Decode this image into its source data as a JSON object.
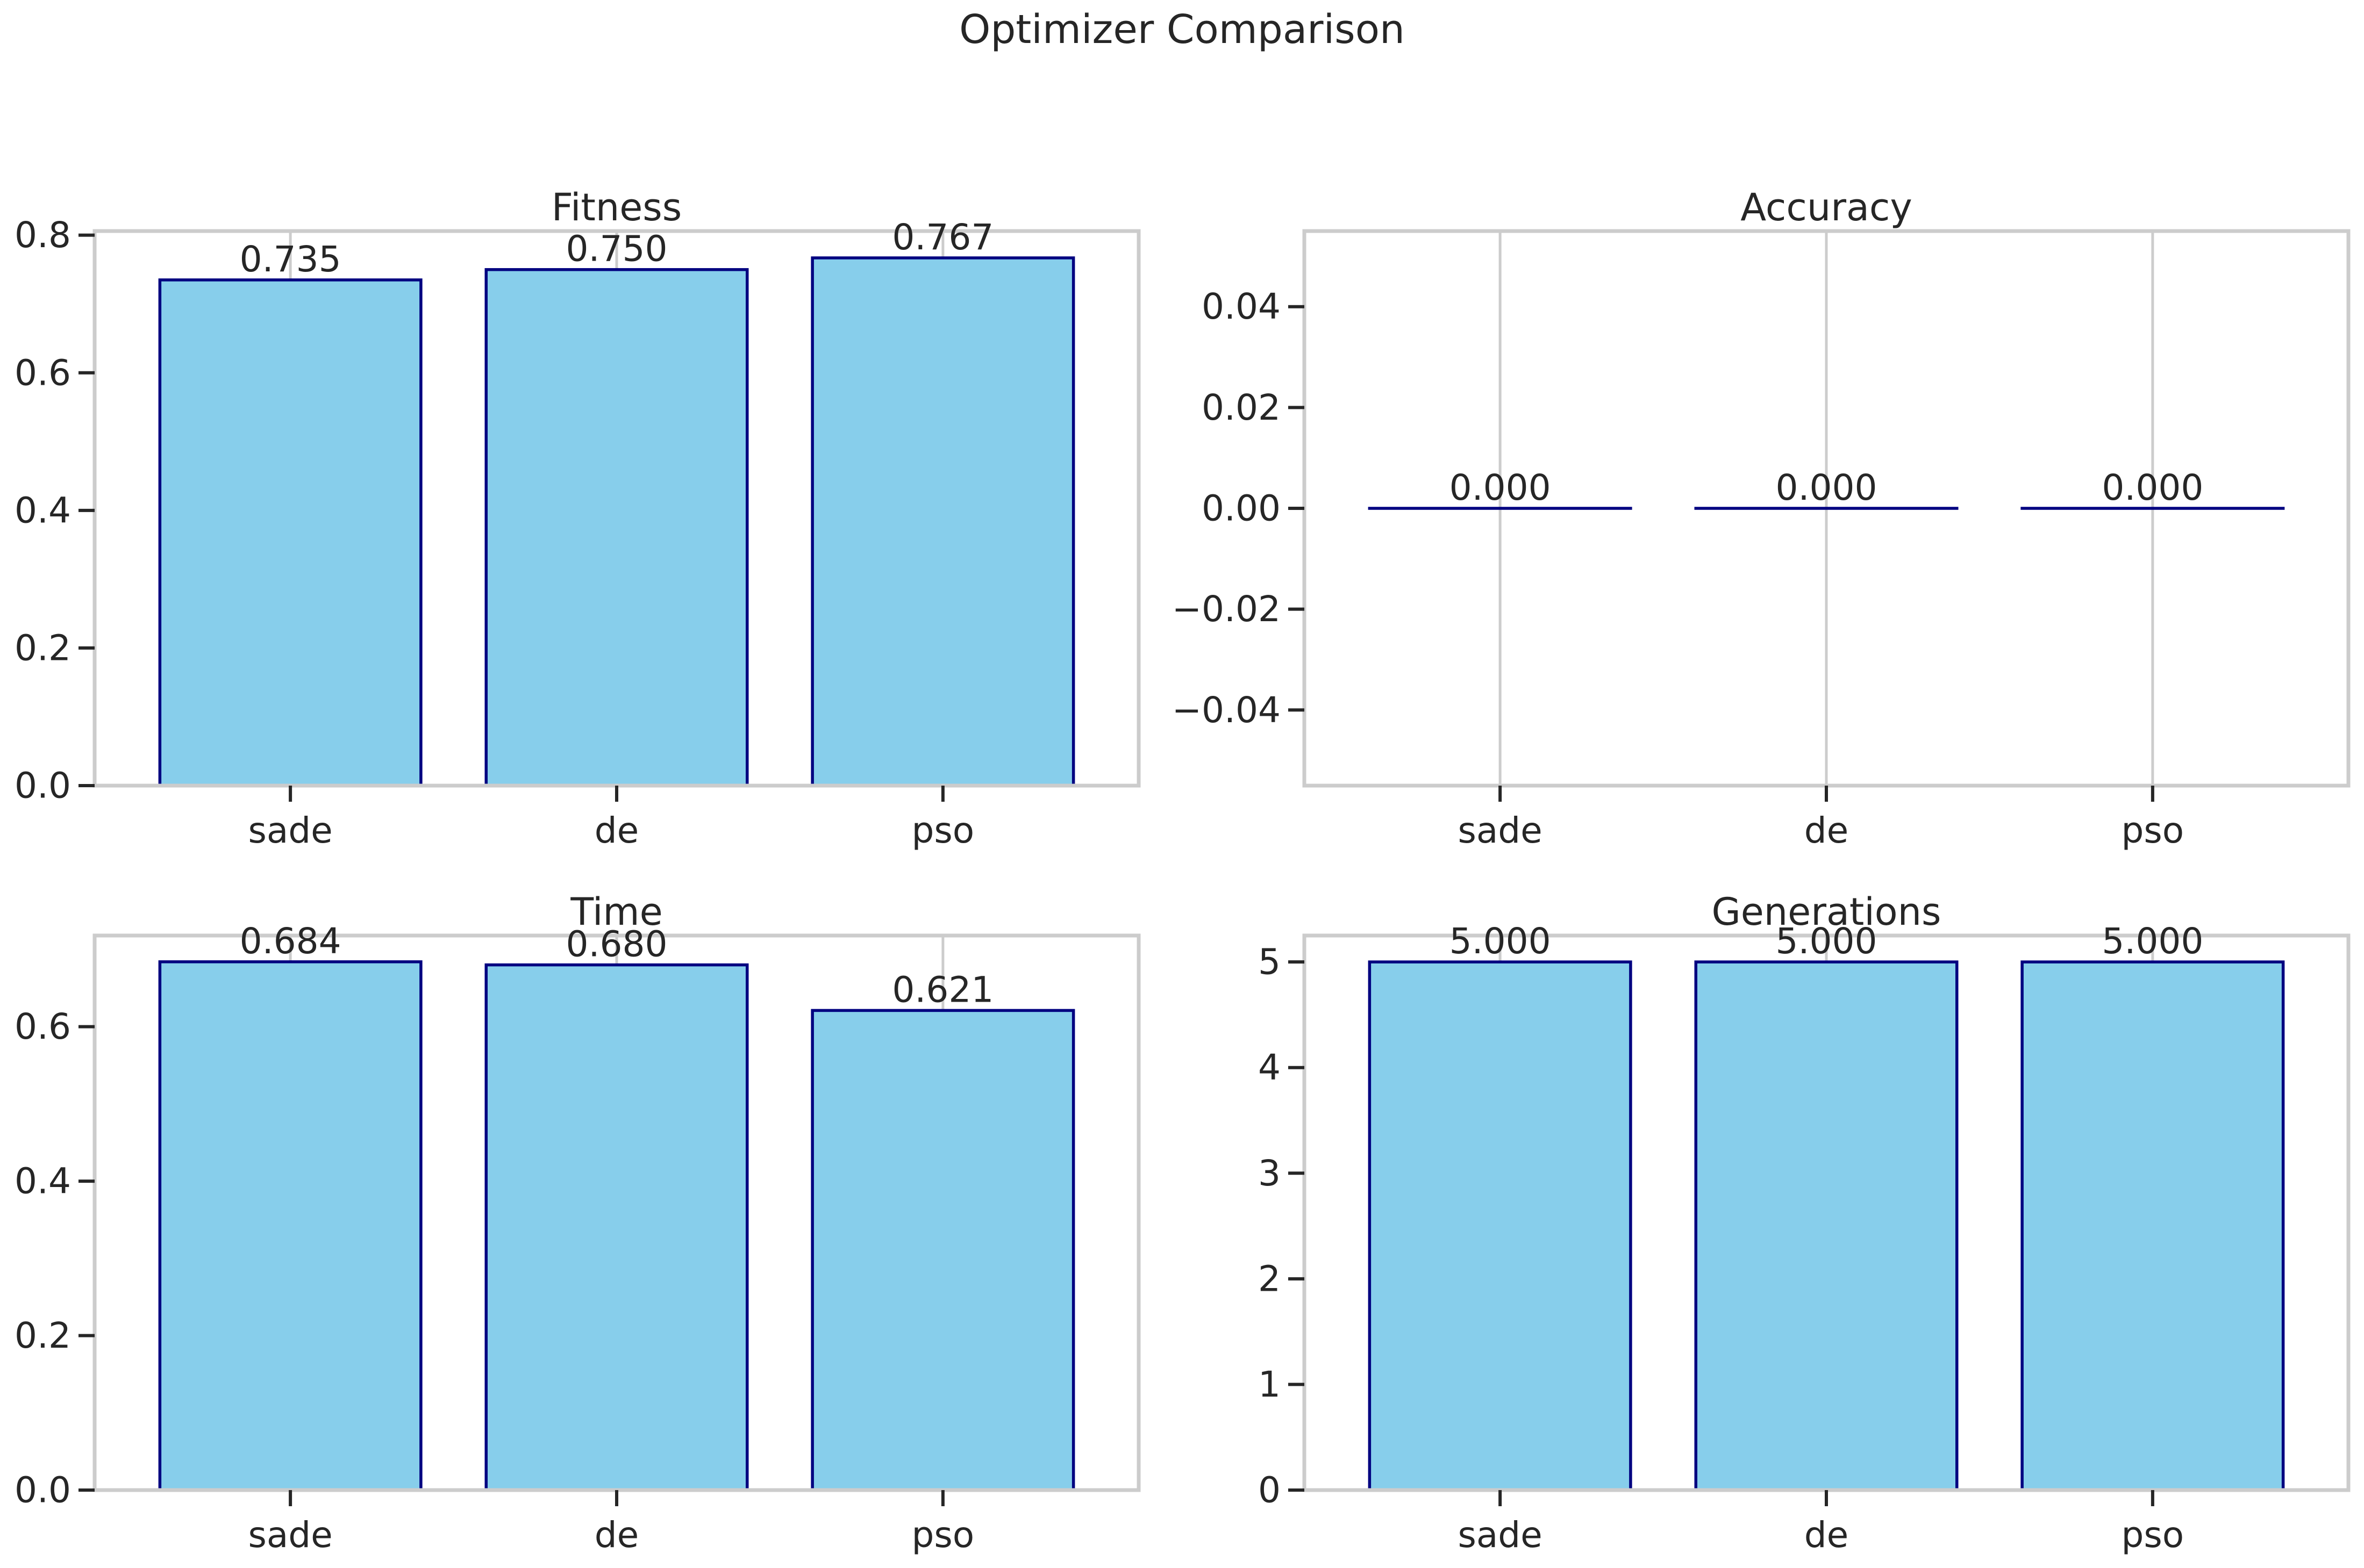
{
  "figure": {
    "title": "Optimizer Comparison"
  },
  "colors": {
    "bar_fill": "#87CEEB",
    "bar_edge": "#000080",
    "grid": "#cccccc",
    "spine": "#cccccc",
    "text": "#262626"
  },
  "chart_data": [
    {
      "type": "bar",
      "title": "Fitness",
      "categories": [
        "sade",
        "de",
        "pso"
      ],
      "values": [
        0.735,
        0.75,
        0.767
      ],
      "value_labels": [
        "0.735",
        "0.750",
        "0.767"
      ],
      "ylim": [
        0,
        0.806
      ],
      "yticks": [
        0.0,
        0.2,
        0.4,
        0.6,
        0.8
      ],
      "ytick_labels": [
        "0.0",
        "0.2",
        "0.4",
        "0.6",
        "0.8"
      ],
      "grid": "x"
    },
    {
      "type": "bar",
      "title": "Accuracy",
      "categories": [
        "sade",
        "de",
        "pso"
      ],
      "values": [
        0.0,
        0.0,
        0.0
      ],
      "value_labels": [
        "0.000",
        "0.000",
        "0.000"
      ],
      "ylim": [
        -0.055,
        0.055
      ],
      "yticks": [
        -0.04,
        -0.02,
        0.0,
        0.02,
        0.04
      ],
      "ytick_labels": [
        "−0.04",
        "−0.02",
        "0.00",
        "0.02",
        "0.04"
      ],
      "grid": "x"
    },
    {
      "type": "bar",
      "title": "Time",
      "categories": [
        "sade",
        "de",
        "pso"
      ],
      "values": [
        0.684,
        0.68,
        0.621
      ],
      "value_labels": [
        "0.684",
        "0.680",
        "0.621"
      ],
      "ylim": [
        0,
        0.718
      ],
      "yticks": [
        0.0,
        0.2,
        0.4,
        0.6
      ],
      "ytick_labels": [
        "0.0",
        "0.2",
        "0.4",
        "0.6"
      ],
      "grid": "x"
    },
    {
      "type": "bar",
      "title": "Generations",
      "categories": [
        "sade",
        "de",
        "pso"
      ],
      "values": [
        5.0,
        5.0,
        5.0
      ],
      "value_labels": [
        "5.000",
        "5.000",
        "5.000"
      ],
      "ylim": [
        0,
        5.25
      ],
      "yticks": [
        0,
        1,
        2,
        3,
        4,
        5
      ],
      "ytick_labels": [
        "0",
        "1",
        "2",
        "3",
        "4",
        "5"
      ],
      "grid": "x"
    }
  ]
}
